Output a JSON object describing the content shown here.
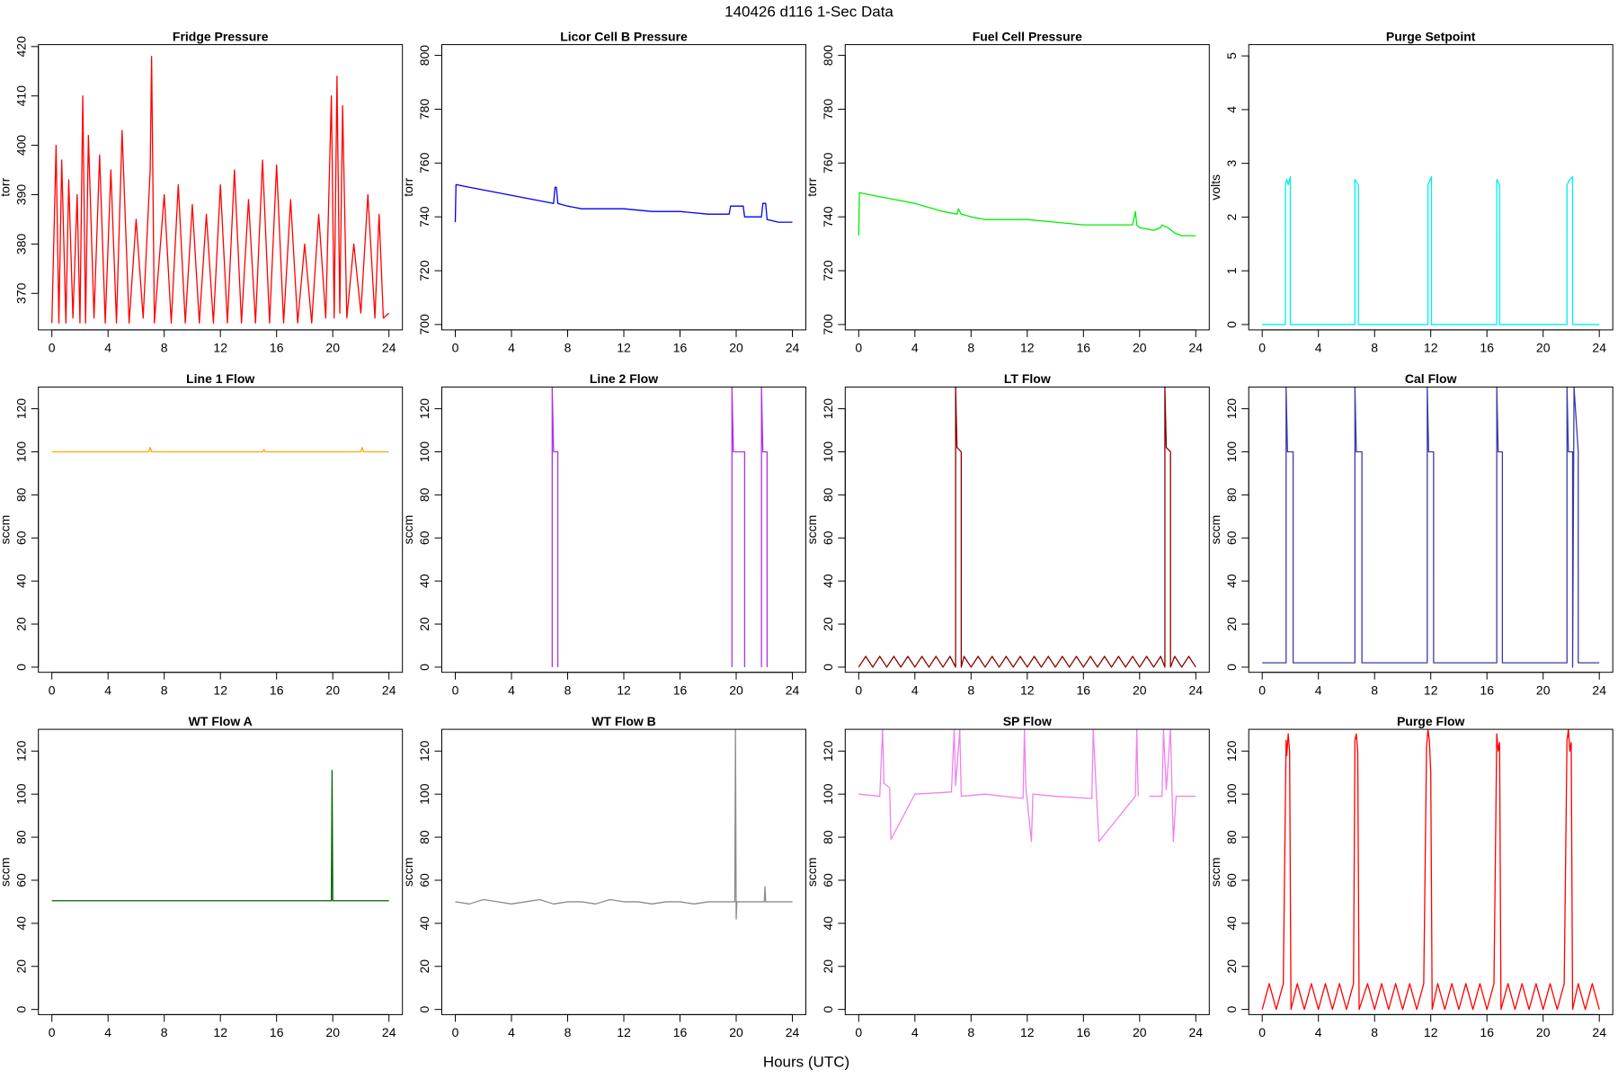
{
  "title": "140426   d116   1-Sec Data",
  "xlabel": "Hours (UTC)",
  "chart_data": [
    {
      "type": "line",
      "title": "Fridge Pressure",
      "ylabel": "torr",
      "color": "#ff0000",
      "x": [
        0,
        0.3,
        0.5,
        0.7,
        1,
        1.2,
        1.5,
        1.8,
        2,
        2.2,
        2.4,
        2.6,
        3,
        3.4,
        3.8,
        4.2,
        4.6,
        5,
        5.5,
        6,
        6.5,
        7,
        7.1,
        7.3,
        8,
        8.5,
        9,
        9.5,
        10,
        10.5,
        11,
        11.5,
        12,
        12.5,
        13,
        13.5,
        14,
        14.5,
        15,
        15.5,
        16,
        16.5,
        17,
        17.5,
        18,
        18.5,
        19,
        19.5,
        19.9,
        20.1,
        20.3,
        20.5,
        20.7,
        21,
        21.5,
        22,
        22.5,
        23,
        23.3,
        23.6,
        24
      ],
      "values": [
        364,
        400,
        364,
        397,
        364,
        393,
        365,
        390,
        364,
        410,
        364,
        402,
        365,
        398,
        364,
        395,
        364,
        403,
        364,
        385,
        365,
        395,
        418,
        364,
        390,
        364,
        392,
        364,
        388,
        364,
        386,
        364,
        392,
        364,
        395,
        364,
        389,
        364,
        397,
        364,
        396,
        364,
        389,
        364,
        380,
        364,
        386,
        365,
        410,
        365,
        414,
        366,
        408,
        365,
        380,
        366,
        390,
        365,
        386,
        365,
        366
      ],
      "xlim": [
        -0.96,
        24.96
      ],
      "xticks": [
        0,
        4,
        8,
        12,
        16,
        20,
        24
      ],
      "ylim": [
        362.6,
        420.4
      ],
      "yticks": [
        370,
        380,
        390,
        400,
        410,
        420
      ]
    },
    {
      "type": "line",
      "title": "Licor Cell B Pressure",
      "ylabel": "torr",
      "color": "#0000ee",
      "x": [
        0,
        0.05,
        1,
        2,
        3,
        4,
        5,
        6,
        7,
        7.1,
        7.2,
        7.3,
        8,
        9,
        10,
        12,
        14,
        16,
        18,
        19.5,
        19.6,
        20,
        20.5,
        20.6,
        21,
        21.5,
        21.8,
        21.9,
        22.1,
        22.2,
        23,
        24
      ],
      "values": [
        738,
        752,
        751,
        750,
        749,
        748,
        747,
        746,
        745,
        751,
        751,
        745,
        744,
        743,
        743,
        743,
        742,
        742,
        741,
        741,
        744,
        744,
        744,
        740,
        740,
        740,
        740,
        745,
        745,
        739,
        738,
        738
      ],
      "xlim": [
        -0.96,
        24.96
      ],
      "xticks": [
        0,
        4,
        8,
        12,
        16,
        20,
        24
      ],
      "ylim": [
        698,
        804
      ],
      "yticks": [
        700,
        720,
        740,
        760,
        780,
        800
      ]
    },
    {
      "type": "line",
      "title": "Fuel Cell Pressure",
      "ylabel": "torr",
      "color": "#00ee00",
      "x": [
        0,
        0.05,
        1,
        2,
        4,
        6,
        7,
        7.1,
        7.3,
        8,
        9,
        10,
        12,
        14,
        16,
        18,
        19.5,
        19.7,
        19.8,
        20,
        21,
        21.5,
        21.6,
        22,
        22.5,
        23,
        24
      ],
      "values": [
        733,
        749,
        748,
        747,
        745,
        742,
        741,
        743,
        741,
        740,
        739,
        739,
        739,
        738,
        737,
        737,
        737,
        742,
        737,
        736,
        735,
        736,
        737,
        736,
        734,
        733,
        733
      ],
      "xlim": [
        -0.96,
        24.96
      ],
      "xticks": [
        0,
        4,
        8,
        12,
        16,
        20,
        24
      ],
      "ylim": [
        698,
        804
      ],
      "yticks": [
        700,
        720,
        740,
        760,
        780,
        800
      ]
    },
    {
      "type": "line",
      "title": "Purge Setpoint",
      "ylabel": "volts",
      "color": "#00eeee",
      "x": [
        0,
        1.65,
        1.65,
        1.75,
        1.85,
        2.0,
        2.0,
        6.6,
        6.6,
        6.85,
        6.85,
        11.8,
        11.8,
        12.05,
        12.05,
        16.7,
        16.7,
        16.9,
        16.9,
        21.7,
        21.7,
        21.9,
        22.1,
        22.1,
        24
      ],
      "values": [
        0,
        0,
        2.6,
        2.7,
        2.6,
        2.75,
        0,
        0,
        2.7,
        2.6,
        0,
        0,
        2.6,
        2.75,
        0,
        0,
        2.7,
        2.6,
        0,
        0,
        2.6,
        2.7,
        2.75,
        0,
        0
      ],
      "xlim": [
        -0.96,
        24.96
      ],
      "xticks": [
        0,
        4,
        8,
        12,
        16,
        20,
        24
      ],
      "ylim": [
        -0.1,
        5.21
      ],
      "yticks": [
        0,
        1,
        2,
        3,
        4,
        5
      ]
    },
    {
      "type": "line",
      "title": "Line 1 Flow",
      "ylabel": "sccm",
      "color": "#ffa500",
      "x": [
        0,
        6.9,
        7.0,
        7.1,
        15,
        15.1,
        15.2,
        22,
        22.1,
        22.2,
        24
      ],
      "values": [
        100,
        100,
        102,
        100,
        100,
        101,
        100,
        100,
        102,
        100,
        100
      ],
      "xlim": [
        -0.96,
        24.96
      ],
      "xticks": [
        0,
        4,
        8,
        12,
        16,
        20,
        24
      ],
      "ylim": [
        -2.4,
        130.1
      ],
      "yticks": [
        0,
        20,
        40,
        60,
        80,
        100,
        120
      ]
    },
    {
      "type": "line",
      "title": "Line 2 Flow",
      "ylabel": "sccm",
      "color": "#b030e8",
      "x": [
        6.9,
        6.9,
        7.0,
        7.3,
        7.3,
        7.4,
        19.7,
        19.7,
        19.8,
        20.6,
        20.6,
        20.7,
        21.8,
        21.8,
        21.9,
        22.2,
        22.2
      ],
      "values": [
        0,
        130,
        100,
        100,
        0,
        null,
        0,
        130,
        100,
        100,
        0,
        null,
        0,
        130,
        100,
        100,
        0
      ],
      "xlim": [
        -0.96,
        24.96
      ],
      "xticks": [
        0,
        4,
        8,
        12,
        16,
        20,
        24
      ],
      "ylim": [
        -2.4,
        130.1
      ],
      "yticks": [
        0,
        20,
        40,
        60,
        80,
        100,
        120
      ]
    },
    {
      "type": "line",
      "title": "LT Flow",
      "ylabel": "sccm",
      "color": "#8b0000",
      "x": [
        0,
        0.5,
        1,
        1.5,
        2,
        2.5,
        3,
        3.5,
        4,
        4.5,
        5,
        5.5,
        6,
        6.5,
        6.9,
        6.9,
        7.0,
        7.3,
        7.3,
        7.5,
        8,
        8.5,
        9,
        9.5,
        10,
        10.5,
        11,
        11.5,
        12,
        12.5,
        13,
        13.5,
        14,
        14.5,
        15,
        15.5,
        16,
        16.5,
        17,
        17.5,
        18,
        18.5,
        19,
        19.5,
        20,
        20.5,
        21,
        21.5,
        21.8,
        21.8,
        21.9,
        22.2,
        22.2,
        22.5,
        23,
        23.5,
        24
      ],
      "values": [
        0,
        5,
        0,
        5,
        0,
        5,
        0,
        5,
        0,
        5,
        0,
        5,
        0,
        5,
        0,
        130,
        102,
        100,
        0,
        5,
        0,
        5,
        0,
        5,
        0,
        5,
        0,
        5,
        0,
        5,
        0,
        5,
        0,
        5,
        0,
        5,
        0,
        5,
        0,
        5,
        0,
        5,
        0,
        5,
        0,
        5,
        0,
        5,
        0,
        130,
        102,
        100,
        0,
        5,
        0,
        5,
        0
      ],
      "xlim": [
        -0.96,
        24.96
      ],
      "xticks": [
        0,
        4,
        8,
        12,
        16,
        20,
        24
      ],
      "ylim": [
        -2.4,
        130.1
      ],
      "yticks": [
        0,
        20,
        40,
        60,
        80,
        100,
        120
      ]
    },
    {
      "type": "line",
      "title": "Cal Flow",
      "ylabel": "sccm",
      "color": "#3a3aa8",
      "x": [
        0,
        1.7,
        1.7,
        1.8,
        2.2,
        2.2,
        6.6,
        6.6,
        6.7,
        7.1,
        7.1,
        11.75,
        11.75,
        11.85,
        12.2,
        12.2,
        16.7,
        16.7,
        16.8,
        17.1,
        17.1,
        21.7,
        21.7,
        21.8,
        22.1,
        22.1,
        22.2,
        22.5,
        22.5,
        24
      ],
      "values": [
        2,
        2,
        130,
        100,
        100,
        2,
        2,
        130,
        100,
        100,
        2,
        2,
        130,
        100,
        100,
        2,
        2,
        130,
        100,
        100,
        2,
        2,
        130,
        100,
        100,
        0,
        130,
        100,
        2,
        2
      ],
      "xlim": [
        -0.96,
        24.96
      ],
      "xticks": [
        0,
        4,
        8,
        12,
        16,
        20,
        24
      ],
      "ylim": [
        -2.4,
        130.1
      ],
      "yticks": [
        0,
        20,
        40,
        60,
        80,
        100,
        120
      ]
    },
    {
      "type": "line",
      "title": "WT Flow A",
      "ylabel": "sccm",
      "color": "#006400",
      "x": [
        0,
        19.9,
        19.95,
        20.0,
        24
      ],
      "values": [
        50.5,
        50.5,
        111,
        50.5,
        50.5
      ],
      "xlim": [
        -0.96,
        24.96
      ],
      "xticks": [
        0,
        4,
        8,
        12,
        16,
        20,
        24
      ],
      "ylim": [
        -2.4,
        130.1
      ],
      "yticks": [
        0,
        20,
        40,
        60,
        80,
        100,
        120
      ]
    },
    {
      "type": "line",
      "title": "WT Flow B",
      "ylabel": "sccm",
      "color": "#8c8c8c",
      "x": [
        0,
        1,
        2,
        3,
        4,
        5,
        6,
        7,
        8,
        9,
        10,
        11,
        12,
        13,
        14,
        15,
        16,
        17,
        18,
        19,
        19.9,
        19.95,
        20,
        20.05,
        21,
        22,
        22.05,
        22.1,
        23,
        24
      ],
      "values": [
        50,
        49,
        51,
        50,
        49,
        50,
        51,
        49,
        50,
        50,
        49,
        51,
        50,
        50,
        49,
        50,
        50,
        49,
        50,
        50,
        50,
        130,
        42,
        50,
        50,
        50,
        57,
        50,
        50,
        50
      ],
      "xlim": [
        -0.96,
        24.96
      ],
      "xticks": [
        0,
        4,
        8,
        12,
        16,
        20,
        24
      ],
      "ylim": [
        -2.4,
        130.1
      ],
      "yticks": [
        0,
        20,
        40,
        60,
        80,
        100,
        120
      ]
    },
    {
      "type": "line",
      "title": "SP Flow",
      "ylabel": "sccm",
      "color": "#ee82ee",
      "x": [
        0,
        1.5,
        1.7,
        1.8,
        2.2,
        2.3,
        4,
        6.6,
        6.8,
        6.9,
        7.2,
        7.3,
        9,
        11.7,
        11.8,
        11.9,
        12.3,
        12.4,
        14,
        16.6,
        16.7,
        16.9,
        17.1,
        19.7,
        19.8,
        19.9,
        20.6,
        20.7,
        21.6,
        21.7,
        21.9,
        22.2,
        22.4,
        22.6,
        24
      ],
      "values": [
        100,
        99,
        130,
        105,
        103,
        79,
        100,
        101,
        130,
        104,
        130,
        99,
        100,
        98,
        130,
        103,
        78,
        100,
        99,
        98,
        130,
        103,
        78,
        99,
        130,
        99,
        null,
        99,
        99,
        130,
        102,
        130,
        78,
        99,
        99
      ],
      "xlim": [
        -0.96,
        24.96
      ],
      "xticks": [
        0,
        4,
        8,
        12,
        16,
        20,
        24
      ],
      "ylim": [
        -2.4,
        130.1
      ],
      "yticks": [
        0,
        20,
        40,
        60,
        80,
        100,
        120
      ]
    },
    {
      "type": "line",
      "title": "Purge Flow",
      "ylabel": "sccm",
      "color": "#ff0000",
      "x": [
        0,
        0.5,
        1,
        1.5,
        1.7,
        1.75,
        1.85,
        1.95,
        2.05,
        2.5,
        3,
        3.5,
        4,
        4.5,
        5,
        5.5,
        6,
        6.5,
        6.6,
        6.7,
        6.8,
        6.9,
        7.5,
        8,
        8.5,
        9,
        9.5,
        10,
        10.5,
        11,
        11.5,
        11.7,
        11.8,
        11.9,
        12.0,
        12.1,
        12.5,
        13,
        13.5,
        14,
        14.5,
        15,
        15.5,
        16,
        16.5,
        16.7,
        16.8,
        16.9,
        17.0,
        17.5,
        18,
        18.5,
        19,
        19.5,
        20,
        20.5,
        21,
        21.5,
        21.7,
        21.8,
        21.9,
        22.0,
        22.1,
        22.5,
        23,
        23.5,
        24
      ],
      "values": [
        0,
        12,
        0,
        12,
        125,
        118,
        128,
        120,
        0,
        12,
        0,
        12,
        0,
        12,
        0,
        12,
        0,
        12,
        125,
        128,
        120,
        0,
        12,
        0,
        12,
        0,
        12,
        0,
        12,
        0,
        12,
        122,
        130,
        125,
        110,
        0,
        12,
        0,
        12,
        0,
        12,
        0,
        12,
        0,
        12,
        128,
        120,
        124,
        0,
        12,
        0,
        12,
        0,
        12,
        0,
        12,
        0,
        12,
        125,
        130,
        120,
        124,
        0,
        12,
        0,
        12,
        0
      ],
      "xlim": [
        -0.96,
        24.96
      ],
      "xticks": [
        0,
        4,
        8,
        12,
        16,
        20,
        24
      ],
      "ylim": [
        -2.4,
        130.1
      ],
      "yticks": [
        0,
        20,
        40,
        60,
        80,
        100,
        120
      ]
    }
  ]
}
